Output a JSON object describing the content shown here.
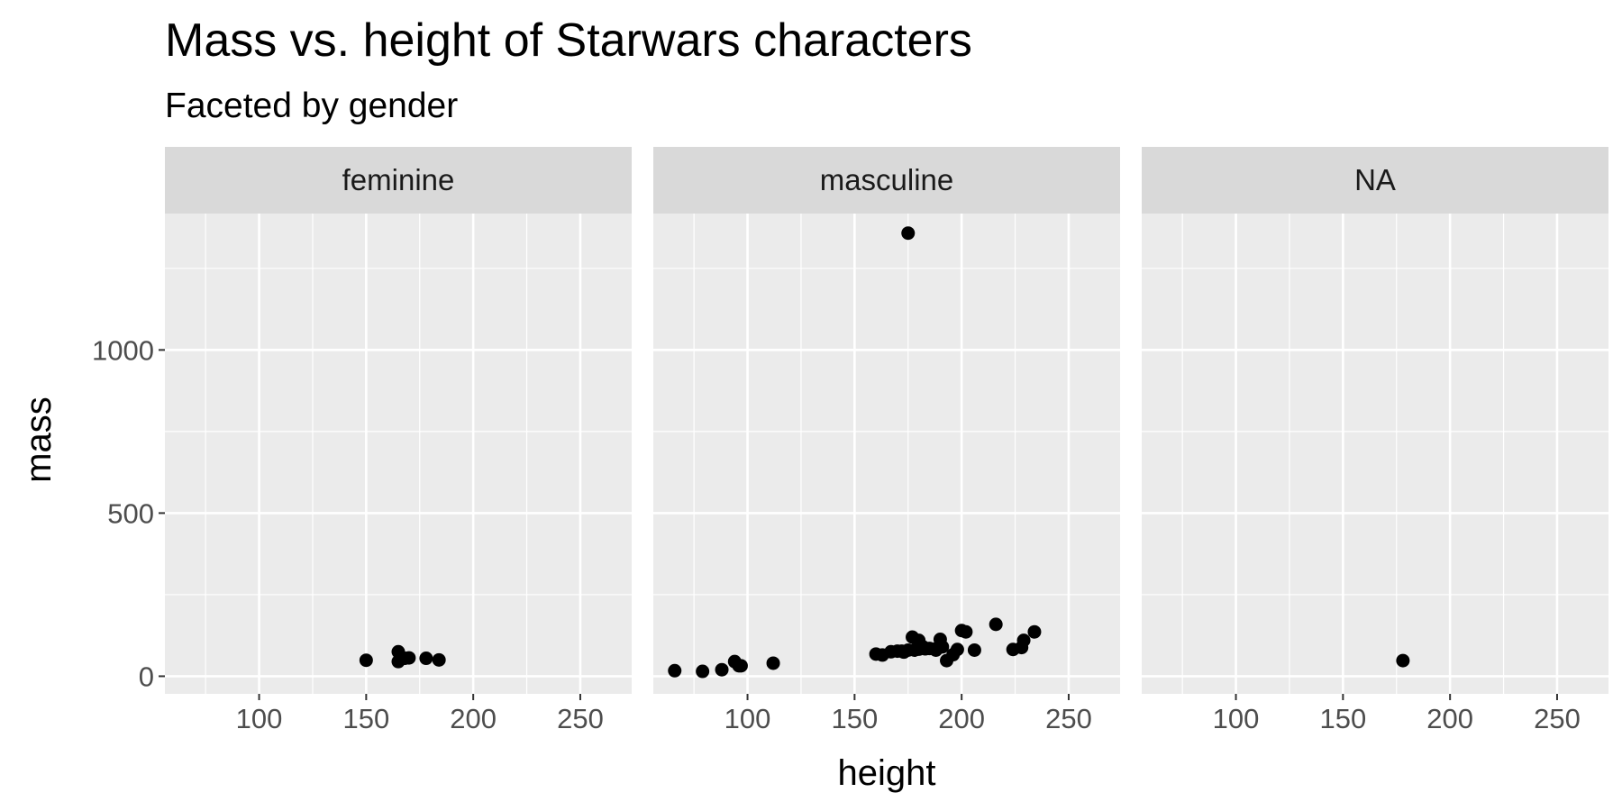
{
  "chart_data": {
    "type": "scatter",
    "title": "Mass vs. height of Starwars characters",
    "subtitle": "Faceted by gender",
    "xlabel": "height",
    "ylabel": "mass",
    "xlim": [
      56,
      274
    ],
    "ylim": [
      -54,
      1418
    ],
    "x_ticks": [
      100,
      150,
      200,
      250
    ],
    "y_ticks": [
      0,
      500,
      1000
    ],
    "grid": true,
    "colors": {
      "panel_background": "#EBEBEB",
      "strip_background": "#D9D9D9",
      "grid": "#FFFFFF",
      "points": "#000000"
    },
    "facets": [
      {
        "label": "feminine",
        "points": [
          {
            "x": 150,
            "y": 49
          },
          {
            "x": 165,
            "y": 75
          },
          {
            "x": 165,
            "y": 45
          },
          {
            "x": 168,
            "y": 55
          },
          {
            "x": 170,
            "y": 56.2
          },
          {
            "x": 178,
            "y": 55
          },
          {
            "x": 184,
            "y": 50
          }
        ]
      },
      {
        "label": "masculine",
        "points": [
          {
            "x": 66,
            "y": 17
          },
          {
            "x": 79,
            "y": 15
          },
          {
            "x": 88,
            "y": 20
          },
          {
            "x": 94,
            "y": 45
          },
          {
            "x": 96,
            "y": 32
          },
          {
            "x": 97,
            "y": 32
          },
          {
            "x": 112,
            "y": 40
          },
          {
            "x": 160,
            "y": 68
          },
          {
            "x": 163,
            "y": 65
          },
          {
            "x": 167,
            "y": 75
          },
          {
            "x": 170,
            "y": 77
          },
          {
            "x": 172,
            "y": 77
          },
          {
            "x": 173,
            "y": 74
          },
          {
            "x": 175,
            "y": 1358
          },
          {
            "x": 175,
            "y": 80
          },
          {
            "x": 177,
            "y": 120
          },
          {
            "x": 178,
            "y": 80
          },
          {
            "x": 180,
            "y": 110
          },
          {
            "x": 180,
            "y": 83
          },
          {
            "x": 182,
            "y": 90
          },
          {
            "x": 183,
            "y": 84
          },
          {
            "x": 185,
            "y": 85
          },
          {
            "x": 188,
            "y": 84
          },
          {
            "x": 188,
            "y": 80
          },
          {
            "x": 190,
            "y": 113
          },
          {
            "x": 191,
            "y": 90
          },
          {
            "x": 193,
            "y": 48
          },
          {
            "x": 196,
            "y": 66
          },
          {
            "x": 198,
            "y": 82
          },
          {
            "x": 200,
            "y": 140
          },
          {
            "x": 202,
            "y": 136
          },
          {
            "x": 206,
            "y": 80
          },
          {
            "x": 216,
            "y": 159
          },
          {
            "x": 224,
            "y": 82
          },
          {
            "x": 228,
            "y": 88
          },
          {
            "x": 229,
            "y": 110
          },
          {
            "x": 234,
            "y": 136
          }
        ]
      },
      {
        "label": "NA",
        "points": [
          {
            "x": 178,
            "y": 48
          }
        ]
      }
    ]
  }
}
